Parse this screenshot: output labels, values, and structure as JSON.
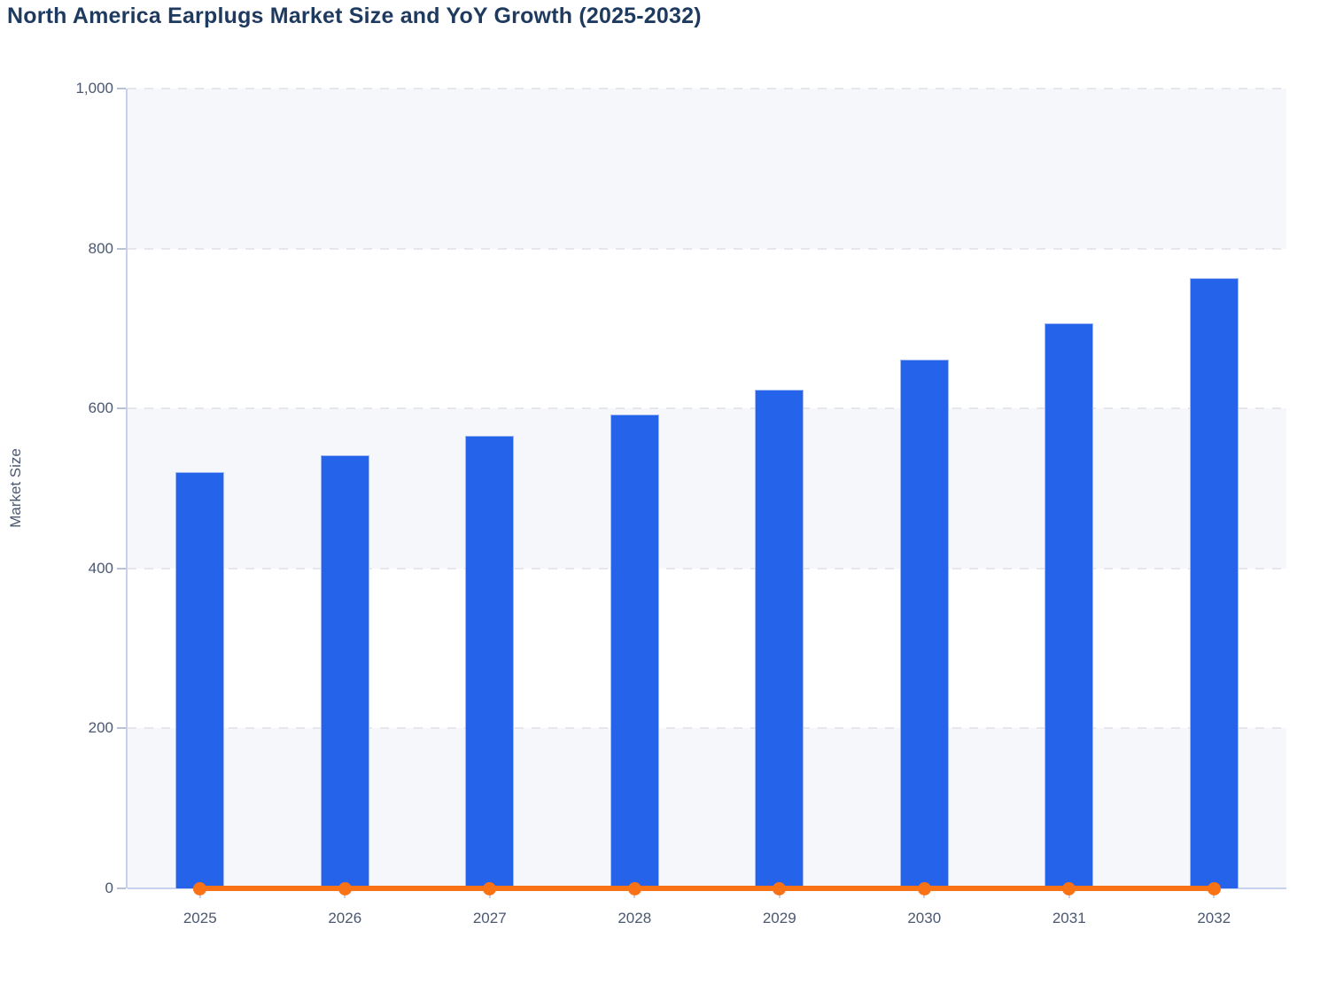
{
  "chart_data": {
    "type": "bar",
    "title": "North America Earplugs Market Size and YoY Growth (2025-2032)",
    "xlabel": "",
    "ylabel": "Market Size",
    "categories": [
      "2025",
      "2026",
      "2027",
      "2028",
      "2029",
      "2030",
      "2031",
      "2032"
    ],
    "series": [
      {
        "name": "Market Size",
        "type": "bar",
        "color": "#2563eb",
        "values": [
          520,
          541,
          566,
          593,
          624,
          661,
          707,
          763
        ]
      },
      {
        "name": "YoY Growth",
        "type": "line",
        "color": "#f97316",
        "values": [
          0,
          0,
          0,
          0,
          0,
          0,
          0,
          0
        ]
      }
    ],
    "ylim": [
      0,
      1000
    ],
    "yticks": [
      0,
      200,
      400,
      600,
      800,
      1000
    ],
    "ytick_labels": [
      "0",
      "200",
      "400",
      "600",
      "800",
      "1,000"
    ],
    "grid": "horizontal-dashed",
    "legend_position": "none",
    "plot_background": "alternating-horizontal-bands"
  },
  "colors": {
    "background": "#ffffff",
    "bar": "#2563eb",
    "bar_border": "#9fb9f2",
    "line": "#f97316",
    "title_text": "#1f3a5f",
    "tick_text": "#4b5870",
    "axis_line": "#c7d1ee",
    "tick_mark": "#b9c2d4",
    "gridline": "#e5e7ec",
    "band": "#f6f7fa"
  }
}
